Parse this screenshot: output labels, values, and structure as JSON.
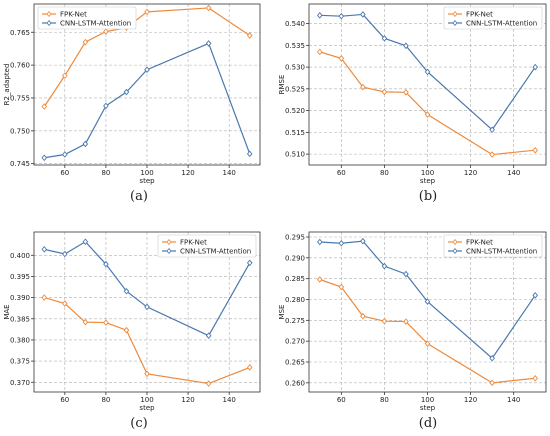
{
  "colors": {
    "fpk": "#ee8a3c",
    "cnn": "#4a78ad",
    "grid": "#b0b0b0"
  },
  "chart_data": [
    {
      "type": "line",
      "caption": "(a)",
      "xlabel": "step",
      "ylabel": "R2_adapted",
      "xlim": [
        45,
        155
      ],
      "ylim": [
        0.7448,
        0.7693
      ],
      "xticks": [
        60,
        80,
        100,
        120,
        140
      ],
      "yticks": [
        0.745,
        0.75,
        0.755,
        0.76,
        0.765
      ],
      "ytick_labels": [
        "0.745",
        "0.750",
        "0.755",
        "0.760",
        "0.765"
      ],
      "legend": "top-left",
      "grid": true,
      "x": [
        50,
        60,
        70,
        80,
        90,
        100,
        130,
        150
      ],
      "series": [
        {
          "name": "FPK-Net",
          "color": "#ee8a3c",
          "values": [
            0.7537,
            0.7584,
            0.7635,
            0.7651,
            0.7657,
            0.7681,
            0.7687,
            0.7645
          ]
        },
        {
          "name": "CNN-LSTM-Attention",
          "color": "#4a78ad",
          "values": [
            0.7459,
            0.7464,
            0.748,
            0.7538,
            0.7559,
            0.7593,
            0.7633,
            0.7465
          ]
        }
      ]
    },
    {
      "type": "line",
      "caption": "(b)",
      "xlabel": "step",
      "ylabel": "RMSE",
      "xlim": [
        45,
        155
      ],
      "ylim": [
        0.5075,
        0.5445
      ],
      "xticks": [
        60,
        80,
        100,
        120,
        140
      ],
      "yticks": [
        0.51,
        0.515,
        0.52,
        0.525,
        0.53,
        0.535,
        0.54
      ],
      "ytick_labels": [
        "0.510",
        "0.515",
        "0.520",
        "0.525",
        "0.530",
        "0.535",
        "0.540"
      ],
      "legend": "top-right",
      "grid": true,
      "x": [
        50,
        60,
        70,
        80,
        90,
        100,
        130,
        150
      ],
      "series": [
        {
          "name": "FPK-Net",
          "color": "#ee8a3c",
          "values": [
            0.5335,
            0.532,
            0.5254,
            0.5243,
            0.5242,
            0.5191,
            0.5099,
            0.5109
          ]
        },
        {
          "name": "CNN-LSTM-Attention",
          "color": "#4a78ad",
          "values": [
            0.5419,
            0.5417,
            0.5421,
            0.5366,
            0.5349,
            0.5289,
            0.5156,
            0.53
          ]
        }
      ]
    },
    {
      "type": "line",
      "caption": "(c)",
      "xlabel": "step",
      "ylabel": "MAE",
      "xlim": [
        45,
        155
      ],
      "ylim": [
        0.3677,
        0.4055
      ],
      "xticks": [
        60,
        80,
        100,
        120,
        140
      ],
      "yticks": [
        0.37,
        0.375,
        0.38,
        0.385,
        0.39,
        0.395,
        0.4
      ],
      "ytick_labels": [
        "0.370",
        "0.375",
        "0.380",
        "0.385",
        "0.390",
        "0.395",
        "0.400"
      ],
      "legend": "top-right",
      "grid": true,
      "x": [
        50,
        60,
        70,
        80,
        90,
        100,
        130,
        150
      ],
      "series": [
        {
          "name": "FPK-Net",
          "color": "#ee8a3c",
          "values": [
            0.39,
            0.3886,
            0.3842,
            0.3841,
            0.3823,
            0.372,
            0.3697,
            0.3735
          ]
        },
        {
          "name": "CNN-LSTM-Attention",
          "color": "#4a78ad",
          "values": [
            0.4014,
            0.4003,
            0.4032,
            0.3979,
            0.3915,
            0.3878,
            0.381,
            0.3982
          ]
        }
      ]
    },
    {
      "type": "line",
      "caption": "(d)",
      "xlabel": "step",
      "ylabel": "MSE",
      "xlim": [
        45,
        155
      ],
      "ylim": [
        0.2578,
        0.2962
      ],
      "xticks": [
        60,
        80,
        100,
        120,
        140
      ],
      "yticks": [
        0.26,
        0.265,
        0.27,
        0.275,
        0.28,
        0.285,
        0.29,
        0.295
      ],
      "ytick_labels": [
        "0.260",
        "0.265",
        "0.270",
        "0.275",
        "0.280",
        "0.285",
        "0.290",
        "0.295"
      ],
      "legend": "top-right",
      "grid": true,
      "x": [
        50,
        60,
        70,
        80,
        90,
        100,
        130,
        150
      ],
      "series": [
        {
          "name": "FPK-Net",
          "color": "#ee8a3c",
          "values": [
            0.2848,
            0.283,
            0.276,
            0.2748,
            0.2747,
            0.2694,
            0.26,
            0.2611
          ]
        },
        {
          "name": "CNN-LSTM-Attention",
          "color": "#4a78ad",
          "values": [
            0.2938,
            0.2935,
            0.294,
            0.288,
            0.2861,
            0.2795,
            0.2659,
            0.281
          ]
        }
      ]
    }
  ]
}
